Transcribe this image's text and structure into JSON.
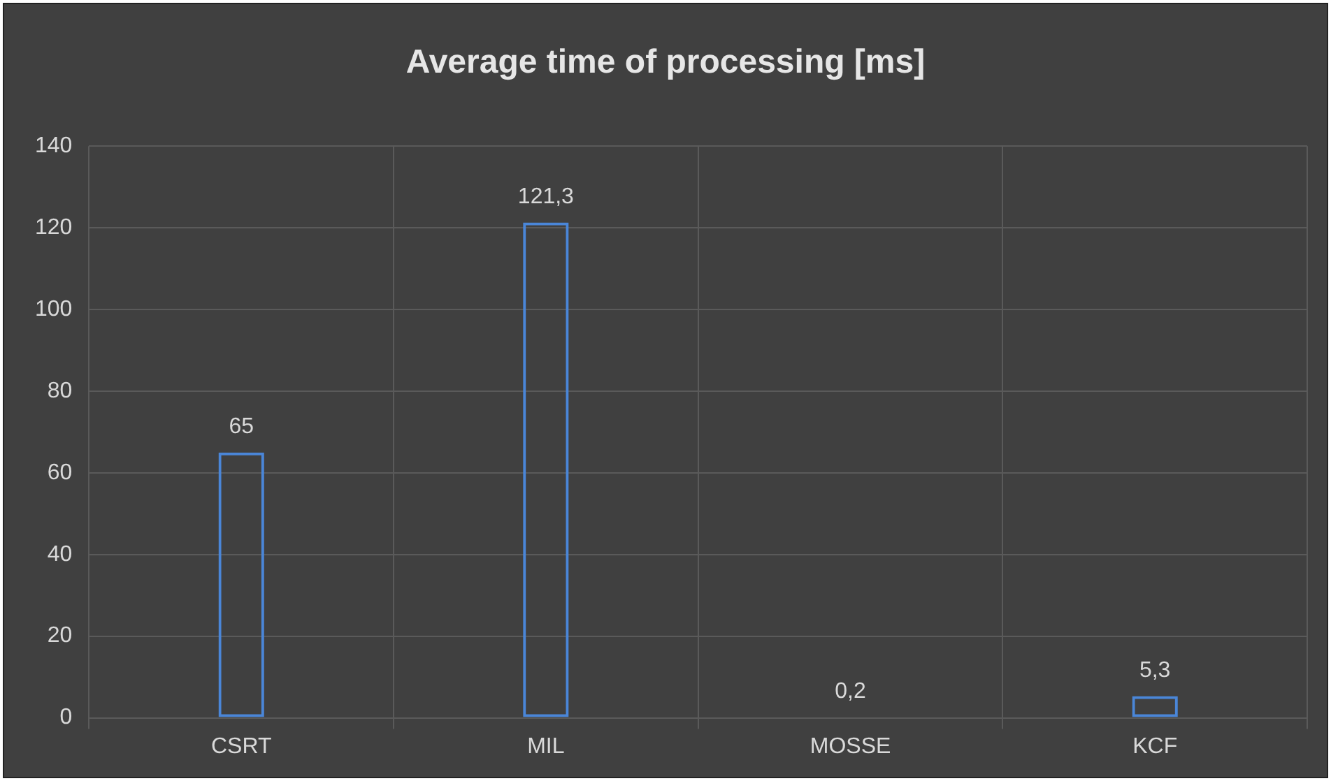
{
  "chart_data": {
    "type": "bar",
    "title": "Average time of processing [ms]",
    "categories": [
      "CSRT",
      "MIL",
      "MOSSE",
      "KCF"
    ],
    "values": [
      65,
      121.3,
      0.2,
      5.3
    ],
    "value_labels": [
      "65",
      "121,3",
      "0,2",
      "5,3"
    ],
    "color": "#4a86d8",
    "ylim": [
      0,
      140
    ],
    "yticks": [
      0,
      20,
      40,
      60,
      80,
      100,
      120,
      140
    ],
    "grid": true
  }
}
